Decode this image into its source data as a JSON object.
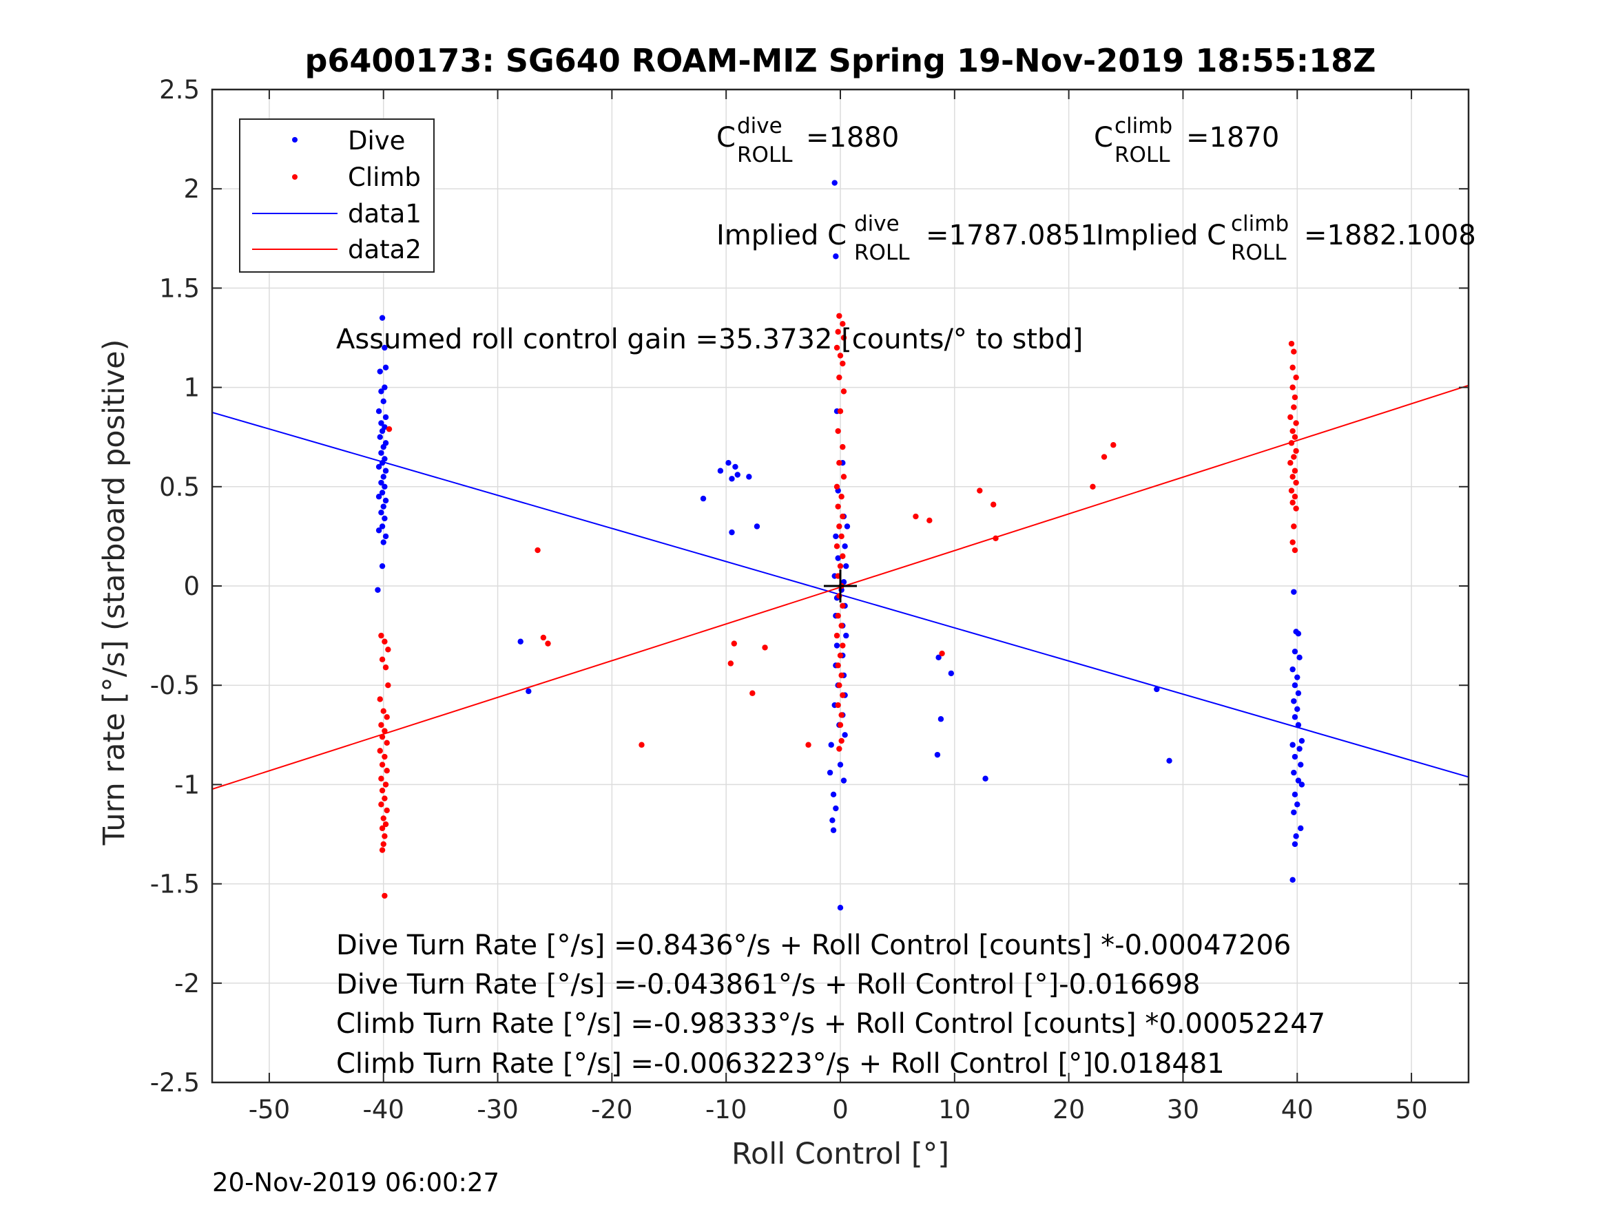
{
  "chart_data": {
    "type": "scatter",
    "title": "p6400173: SG640 ROAM-MIZ Spring 19-Nov-2019 18:55:18Z",
    "xlabel": "Roll Control [°]",
    "ylabel": "Turn rate [°/s] (starboard positive)",
    "xlim": [
      -55,
      55
    ],
    "ylim": [
      -2.5,
      2.5
    ],
    "xticks": [
      -50,
      -40,
      -30,
      -20,
      -10,
      0,
      10,
      20,
      30,
      40,
      50
    ],
    "xtick_labels": [
      "-50",
      "-40",
      "-30",
      "-20",
      "-10",
      "0",
      "10",
      "20",
      "30",
      "40",
      "50"
    ],
    "yticks": [
      2.5,
      2,
      1.5,
      1,
      0.5,
      0,
      -0.5,
      -1,
      -1.5,
      -2,
      -2.5
    ],
    "ytick_labels": [
      "2.5",
      "2",
      "1.5",
      "1",
      "0.5",
      "0",
      "-0.5",
      "-1",
      "-1.5",
      "-2",
      "-2.5"
    ],
    "grid": true,
    "legend_position": "top-left",
    "legend": [
      "Dive",
      "Climb",
      "data1",
      "data2"
    ],
    "series": [
      {
        "name": "Dive",
        "kind": "points",
        "color": "#0000ff",
        "points": [
          [
            -40.1,
            1.35
          ],
          [
            -39.9,
            1.2
          ],
          [
            -40.3,
            1.08
          ],
          [
            -39.8,
            1.1
          ],
          [
            -40.2,
            0.98
          ],
          [
            -39.9,
            1.0
          ],
          [
            -40.0,
            0.93
          ],
          [
            -40.4,
            0.88
          ],
          [
            -39.8,
            0.85
          ],
          [
            -40.2,
            0.82
          ],
          [
            -39.9,
            0.8
          ],
          [
            -40.1,
            0.78
          ],
          [
            -40.3,
            0.75
          ],
          [
            -39.8,
            0.72
          ],
          [
            -40.0,
            0.7
          ],
          [
            -40.2,
            0.67
          ],
          [
            -39.9,
            0.64
          ],
          [
            -40.1,
            0.62
          ],
          [
            -40.4,
            0.6
          ],
          [
            -39.8,
            0.58
          ],
          [
            -40.0,
            0.55
          ],
          [
            -40.2,
            0.52
          ],
          [
            -39.9,
            0.5
          ],
          [
            -40.1,
            0.47
          ],
          [
            -40.4,
            0.45
          ],
          [
            -39.8,
            0.43
          ],
          [
            -40.0,
            0.4
          ],
          [
            -40.2,
            0.37
          ],
          [
            -39.9,
            0.34
          ],
          [
            -40.1,
            0.3
          ],
          [
            -40.4,
            0.28
          ],
          [
            -39.8,
            0.25
          ],
          [
            -40.0,
            0.22
          ],
          [
            -40.1,
            0.1
          ],
          [
            -40.5,
            -0.02
          ],
          [
            -12.0,
            0.44
          ],
          [
            -10.5,
            0.58
          ],
          [
            -9.8,
            0.62
          ],
          [
            -9.2,
            0.6
          ],
          [
            -9.0,
            0.56
          ],
          [
            -8.0,
            0.55
          ],
          [
            -9.5,
            0.54
          ],
          [
            -9.5,
            0.27
          ],
          [
            -7.3,
            0.3
          ],
          [
            -0.5,
            2.03
          ],
          [
            -0.4,
            1.66
          ],
          [
            -0.3,
            0.88
          ],
          [
            0.2,
            0.62
          ],
          [
            -0.2,
            0.48
          ],
          [
            0.3,
            0.35
          ],
          [
            0.6,
            0.3
          ],
          [
            -0.4,
            0.25
          ],
          [
            0.4,
            0.2
          ],
          [
            -0.2,
            0.14
          ],
          [
            0.5,
            0.1
          ],
          [
            -0.5,
            0.05
          ],
          [
            0.3,
            0.02
          ],
          [
            0.1,
            -0.02
          ],
          [
            -0.3,
            -0.06
          ],
          [
            0.4,
            -0.1
          ],
          [
            -0.4,
            -0.15
          ],
          [
            0.2,
            -0.2
          ],
          [
            0.5,
            -0.25
          ],
          [
            -0.3,
            -0.3
          ],
          [
            0.2,
            -0.35
          ],
          [
            -0.4,
            -0.4
          ],
          [
            0.3,
            -0.45
          ],
          [
            -0.2,
            -0.5
          ],
          [
            0.4,
            -0.55
          ],
          [
            -0.5,
            -0.6
          ],
          [
            0.2,
            -0.65
          ],
          [
            -0.1,
            -0.7
          ],
          [
            0.4,
            -0.75
          ],
          [
            -0.8,
            -0.8
          ],
          [
            0.0,
            -0.9
          ],
          [
            -0.9,
            -0.94
          ],
          [
            0.3,
            -0.98
          ],
          [
            -0.6,
            -1.05
          ],
          [
            -0.4,
            -1.12
          ],
          [
            -0.7,
            -1.18
          ],
          [
            -0.6,
            -1.23
          ],
          [
            0.0,
            -1.62
          ],
          [
            8.6,
            -0.36
          ],
          [
            9.7,
            -0.44
          ],
          [
            8.8,
            -0.67
          ],
          [
            8.5,
            -0.85
          ],
          [
            12.7,
            -0.97
          ],
          [
            -28.0,
            -0.28
          ],
          [
            -27.3,
            -0.53
          ],
          [
            27.7,
            -0.52
          ],
          [
            28.8,
            -0.88
          ],
          [
            39.7,
            -0.03
          ],
          [
            39.9,
            -0.23
          ],
          [
            40.1,
            -0.24
          ],
          [
            39.8,
            -0.33
          ],
          [
            40.2,
            -0.36
          ],
          [
            39.6,
            -0.42
          ],
          [
            40.0,
            -0.46
          ],
          [
            39.8,
            -0.5
          ],
          [
            40.1,
            -0.54
          ],
          [
            39.7,
            -0.58
          ],
          [
            40.0,
            -0.62
          ],
          [
            39.8,
            -0.66
          ],
          [
            40.1,
            -0.7
          ],
          [
            39.6,
            -0.8
          ],
          [
            40.4,
            -0.78
          ],
          [
            40.2,
            -0.82
          ],
          [
            39.8,
            -0.86
          ],
          [
            40.3,
            -0.9
          ],
          [
            39.7,
            -0.94
          ],
          [
            40.1,
            -0.98
          ],
          [
            40.4,
            -1.0
          ],
          [
            39.8,
            -1.05
          ],
          [
            40.0,
            -1.1
          ],
          [
            39.7,
            -1.14
          ],
          [
            40.3,
            -1.22
          ],
          [
            39.9,
            -1.26
          ],
          [
            39.8,
            -1.3
          ],
          [
            39.6,
            -1.48
          ]
        ]
      },
      {
        "name": "Climb",
        "kind": "points",
        "color": "#ff0000",
        "points": [
          [
            -39.5,
            0.79
          ],
          [
            -40.2,
            -0.25
          ],
          [
            -39.9,
            -0.28
          ],
          [
            -39.6,
            -0.32
          ],
          [
            -40.1,
            -0.37
          ],
          [
            -39.8,
            -0.41
          ],
          [
            -39.6,
            -0.5
          ],
          [
            -40.3,
            -0.57
          ],
          [
            -40.0,
            -0.63
          ],
          [
            -39.7,
            -0.66
          ],
          [
            -40.2,
            -0.7
          ],
          [
            -39.9,
            -0.73
          ],
          [
            -40.1,
            -0.76
          ],
          [
            -39.7,
            -0.79
          ],
          [
            -40.3,
            -0.83
          ],
          [
            -39.9,
            -0.86
          ],
          [
            -40.1,
            -0.9
          ],
          [
            -39.7,
            -0.93
          ],
          [
            -40.2,
            -0.97
          ],
          [
            -39.8,
            -1.0
          ],
          [
            -40.1,
            -1.03
          ],
          [
            -39.9,
            -1.07
          ],
          [
            -40.2,
            -1.1
          ],
          [
            -39.7,
            -1.13
          ],
          [
            -40.0,
            -1.17
          ],
          [
            -39.8,
            -1.2
          ],
          [
            -40.1,
            -1.22
          ],
          [
            -39.9,
            -1.26
          ],
          [
            -40.0,
            -1.3
          ],
          [
            -40.1,
            -1.33
          ],
          [
            -39.9,
            -1.56
          ],
          [
            -26.5,
            0.18
          ],
          [
            -26.0,
            -0.26
          ],
          [
            -25.6,
            -0.29
          ],
          [
            -17.4,
            -0.8
          ],
          [
            -9.3,
            -0.29
          ],
          [
            -9.6,
            -0.39
          ],
          [
            -6.6,
            -0.31
          ],
          [
            -7.7,
            -0.54
          ],
          [
            -2.8,
            -0.8
          ],
          [
            -0.1,
            1.36
          ],
          [
            0.2,
            1.32
          ],
          [
            -0.2,
            1.28
          ],
          [
            0.3,
            1.25
          ],
          [
            -0.3,
            1.2
          ],
          [
            0.0,
            1.16
          ],
          [
            0.2,
            1.12
          ],
          [
            -0.1,
            1.05
          ],
          [
            0.3,
            0.98
          ],
          [
            0.0,
            0.88
          ],
          [
            -0.2,
            0.78
          ],
          [
            0.2,
            0.7
          ],
          [
            -0.1,
            0.62
          ],
          [
            0.3,
            0.55
          ],
          [
            -0.3,
            0.5
          ],
          [
            0.1,
            0.45
          ],
          [
            -0.2,
            0.4
          ],
          [
            0.2,
            0.35
          ],
          [
            -0.1,
            0.3
          ],
          [
            0.1,
            0.25
          ],
          [
            -0.3,
            0.2
          ],
          [
            0.2,
            0.15
          ],
          [
            0.0,
            0.1
          ],
          [
            -0.2,
            0.05
          ],
          [
            0.1,
            0.0
          ],
          [
            -0.1,
            -0.05
          ],
          [
            0.2,
            -0.1
          ],
          [
            -0.2,
            -0.15
          ],
          [
            0.1,
            -0.2
          ],
          [
            -0.3,
            -0.25
          ],
          [
            0.2,
            -0.3
          ],
          [
            0.0,
            -0.35
          ],
          [
            -0.2,
            -0.4
          ],
          [
            0.1,
            -0.45
          ],
          [
            -0.1,
            -0.5
          ],
          [
            0.2,
            -0.55
          ],
          [
            -0.2,
            -0.6
          ],
          [
            0.1,
            -0.65
          ],
          [
            0.0,
            -0.7
          ],
          [
            0.1,
            -0.78
          ],
          [
            -0.1,
            -0.82
          ],
          [
            6.6,
            0.35
          ],
          [
            7.8,
            0.33
          ],
          [
            12.2,
            0.48
          ],
          [
            13.4,
            0.41
          ],
          [
            13.6,
            0.24
          ],
          [
            8.9,
            -0.34
          ],
          [
            22.1,
            0.5
          ],
          [
            23.1,
            0.65
          ],
          [
            23.9,
            0.71
          ],
          [
            39.5,
            1.22
          ],
          [
            39.7,
            1.18
          ],
          [
            39.6,
            1.1
          ],
          [
            39.9,
            1.05
          ],
          [
            39.6,
            1.0
          ],
          [
            39.8,
            0.95
          ],
          [
            39.7,
            0.9
          ],
          [
            39.4,
            0.85
          ],
          [
            39.9,
            0.82
          ],
          [
            39.6,
            0.78
          ],
          [
            39.8,
            0.75
          ],
          [
            39.5,
            0.72
          ],
          [
            39.9,
            0.68
          ],
          [
            39.7,
            0.65
          ],
          [
            39.4,
            0.62
          ],
          [
            39.8,
            0.58
          ],
          [
            39.6,
            0.55
          ],
          [
            39.9,
            0.52
          ],
          [
            39.5,
            0.48
          ],
          [
            39.8,
            0.45
          ],
          [
            39.6,
            0.42
          ],
          [
            39.9,
            0.39
          ],
          [
            39.7,
            0.3
          ],
          [
            39.6,
            0.22
          ],
          [
            39.8,
            0.18
          ]
        ]
      },
      {
        "name": "data1",
        "kind": "line",
        "color": "#0000ff",
        "x": [
          -55,
          55
        ],
        "y": [
          0.874,
          -0.962
        ]
      },
      {
        "name": "data2",
        "kind": "line",
        "color": "#ff0000",
        "x": [
          -55,
          55
        ],
        "y": [
          -1.023,
          1.01
        ]
      }
    ],
    "center_marker": {
      "x": 0,
      "y": 0,
      "symbol": "+",
      "color": "#000000"
    },
    "annotations": {
      "croll_dive": {
        "base": "C",
        "sup": "dive",
        "sub": "ROLL",
        "value": "=1880"
      },
      "croll_climb": {
        "base": "C",
        "sup": "climb",
        "sub": "ROLL",
        "value": "=1870"
      },
      "implied_dive": {
        "prefix": "Implied C",
        "sup": "dive",
        "sub": "ROLL",
        "value": "=1787.0851"
      },
      "implied_climb": {
        "prefix": "Implied C",
        "sup": "climb",
        "sub": "ROLL",
        "value": "=1882.1008"
      },
      "gain": "Assumed roll control gain =35.3732 [counts/° to stbd]",
      "fit_lines": [
        "Dive Turn Rate [°/s] =0.8436°/s + Roll Control [counts] *-0.00047206",
        "Dive Turn Rate [°/s] =-0.043861°/s + Roll Control [°]-0.016698",
        "Climb Turn Rate [°/s] =-0.98333°/s + Roll Control [counts] *0.00052247",
        "Climb Turn Rate [°/s] =-0.0063223°/s + Roll Control [°]0.018481"
      ]
    }
  },
  "footer": {
    "timestamp": "20-Nov-2019 06:00:27"
  }
}
